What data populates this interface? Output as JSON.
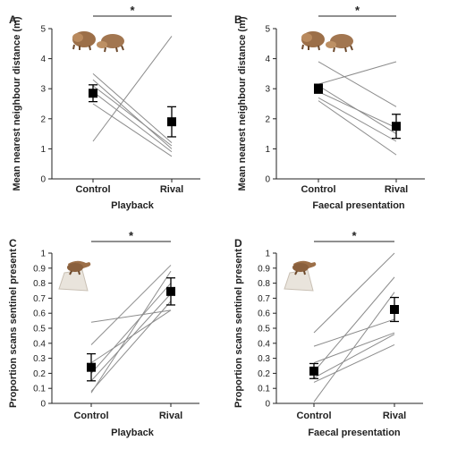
{
  "chart_data": [
    {
      "panel": "A",
      "type": "line",
      "categories": [
        "Control",
        "Rival"
      ],
      "xlabel": "Playback",
      "ylabel": "Mean nearest neighbour distance (m)",
      "ylim": [
        0,
        5
      ],
      "yticks": [
        "0",
        "1",
        "2",
        "3",
        "4",
        "5"
      ],
      "individuals": [
        [
          3.5,
          1.2
        ],
        [
          3.3,
          1.0
        ],
        [
          3.1,
          1.1
        ],
        [
          2.9,
          0.9
        ],
        [
          2.5,
          0.75
        ],
        [
          1.25,
          4.75
        ]
      ],
      "means": [
        2.85,
        1.9
      ],
      "errors": [
        0.28,
        0.5
      ],
      "significance": "*",
      "icon": "mongoose-pair"
    },
    {
      "panel": "B",
      "type": "line",
      "categories": [
        "Control",
        "Rival"
      ],
      "xlabel": "Faecal presentation",
      "ylabel": "Mean nearest neighbour distance (m)",
      "ylim": [
        0,
        5
      ],
      "yticks": [
        "0",
        "1",
        "2",
        "3",
        "4",
        "5"
      ],
      "individuals": [
        [
          3.15,
          3.9
        ],
        [
          3.9,
          2.4
        ],
        [
          3.1,
          1.5
        ],
        [
          2.9,
          1.7
        ],
        [
          2.7,
          1.25
        ],
        [
          2.6,
          0.8
        ]
      ],
      "means": [
        3.0,
        1.75
      ],
      "errors": [
        0.15,
        0.4
      ],
      "significance": "*",
      "icon": "mongoose-pair"
    },
    {
      "panel": "C",
      "type": "line",
      "categories": [
        "Control",
        "Rival"
      ],
      "xlabel": "Playback",
      "ylabel": "Proportion scans sentinel present",
      "ylim": [
        0,
        1
      ],
      "yticks": [
        "0",
        "0.1",
        "0.2",
        "0.3",
        "0.4",
        "0.5",
        "0.6",
        "0.7",
        "0.8",
        "0.9",
        "1"
      ],
      "individuals": [
        [
          0.54,
          0.62
        ],
        [
          0.39,
          0.92
        ],
        [
          0.27,
          0.62
        ],
        [
          0.2,
          0.8
        ],
        [
          0.15,
          0.73
        ],
        [
          0.08,
          0.68
        ],
        [
          0.07,
          0.88
        ]
      ],
      "means": [
        0.24,
        0.745
      ],
      "errors": [
        0.09,
        0.09
      ],
      "significance": "*",
      "icon": "sentinel-mongoose"
    },
    {
      "panel": "D",
      "type": "line",
      "categories": [
        "Control",
        "Rival"
      ],
      "xlabel": "Faecal presentation",
      "ylabel": "Proportion scans sentinel present",
      "ylim": [
        0,
        1
      ],
      "yticks": [
        "0",
        "0.1",
        "0.2",
        "0.3",
        "0.4",
        "0.5",
        "0.6",
        "0.7",
        "0.8",
        "0.9",
        "1"
      ],
      "individuals": [
        [
          0.47,
          1.0
        ],
        [
          0.38,
          0.56
        ],
        [
          0.27,
          0.47
        ],
        [
          0.21,
          0.84
        ],
        [
          0.17,
          0.46
        ],
        [
          0.14,
          0.39
        ],
        [
          0.01,
          0.74
        ]
      ],
      "means": [
        0.215,
        0.625
      ],
      "errors": [
        0.05,
        0.08
      ],
      "significance": "*",
      "icon": "sentinel-mongoose"
    }
  ]
}
